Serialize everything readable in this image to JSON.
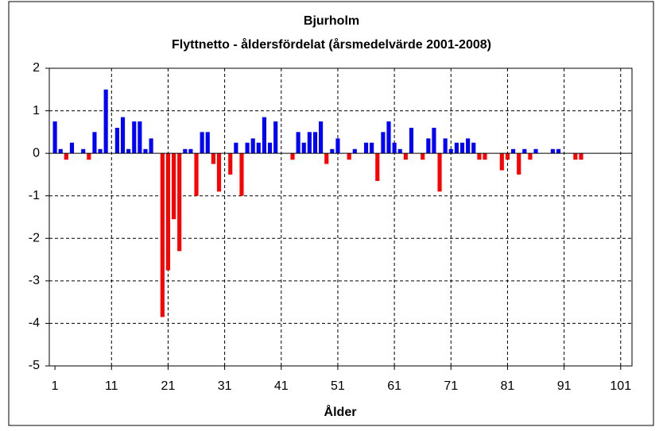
{
  "chart_data": {
    "type": "bar",
    "title": "Bjurholm",
    "subtitle": "Flyttnetto - åldersfördelat (årsmedelvärde 2001-2008)",
    "x_label": "Ålder",
    "x": [
      1,
      2,
      3,
      4,
      5,
      6,
      7,
      8,
      9,
      10,
      11,
      12,
      13,
      14,
      15,
      16,
      17,
      18,
      19,
      20,
      21,
      22,
      23,
      24,
      25,
      26,
      27,
      28,
      29,
      30,
      31,
      32,
      33,
      34,
      35,
      36,
      37,
      38,
      39,
      40,
      41,
      42,
      43,
      44,
      45,
      46,
      47,
      48,
      49,
      50,
      51,
      52,
      53,
      54,
      55,
      56,
      57,
      58,
      59,
      60,
      61,
      62,
      63,
      64,
      65,
      66,
      67,
      68,
      69,
      70,
      71,
      72,
      73,
      74,
      75,
      76,
      77,
      78,
      79,
      80,
      81,
      82,
      83,
      84,
      85,
      86,
      87,
      88,
      89,
      90,
      91,
      92,
      93,
      94,
      95,
      96,
      97,
      98,
      99,
      100,
      101
    ],
    "values": [
      0.75,
      0.1,
      -0.15,
      0.25,
      0,
      0.1,
      -0.15,
      0.5,
      0.1,
      1.5,
      0,
      0.6,
      0.85,
      0.1,
      0.75,
      0.75,
      0.1,
      0.35,
      0,
      -3.85,
      -2.75,
      -1.55,
      -2.3,
      0.1,
      0.1,
      -1,
      0.5,
      0.5,
      -0.25,
      -0.9,
      0,
      -0.5,
      0.25,
      -1,
      0.25,
      0.35,
      0.25,
      0.85,
      0.25,
      0.75,
      0,
      0,
      -0.15,
      0.5,
      0.25,
      0.5,
      0.5,
      0.75,
      -0.25,
      0.1,
      0.35,
      0,
      -0.15,
      0.1,
      0,
      0.25,
      0.25,
      -0.65,
      0.5,
      0.75,
      0.25,
      0.1,
      -0.15,
      0.6,
      0,
      -0.15,
      0.35,
      0.6,
      -0.9,
      0.35,
      0.1,
      0.25,
      0.25,
      0.35,
      0.25,
      -0.15,
      -0.15,
      0,
      0,
      -0.4,
      -0.15,
      0.1,
      -0.5,
      0.1,
      -0.15,
      0.1,
      0,
      0,
      0.1,
      0.1,
      0,
      0,
      -0.15,
      -0.15,
      0,
      0,
      0,
      0,
      0,
      0,
      0
    ],
    "positive_color": "#0000ff",
    "negative_color": "#ff0000",
    "xlim": [
      0,
      103
    ],
    "xticks": [
      1,
      11,
      21,
      31,
      41,
      51,
      61,
      71,
      81,
      91,
      101
    ],
    "ylim": [
      -5,
      2
    ],
    "yticks": [
      -5,
      -4,
      -3,
      -2,
      -1,
      0,
      1,
      2
    ],
    "grid": true
  }
}
